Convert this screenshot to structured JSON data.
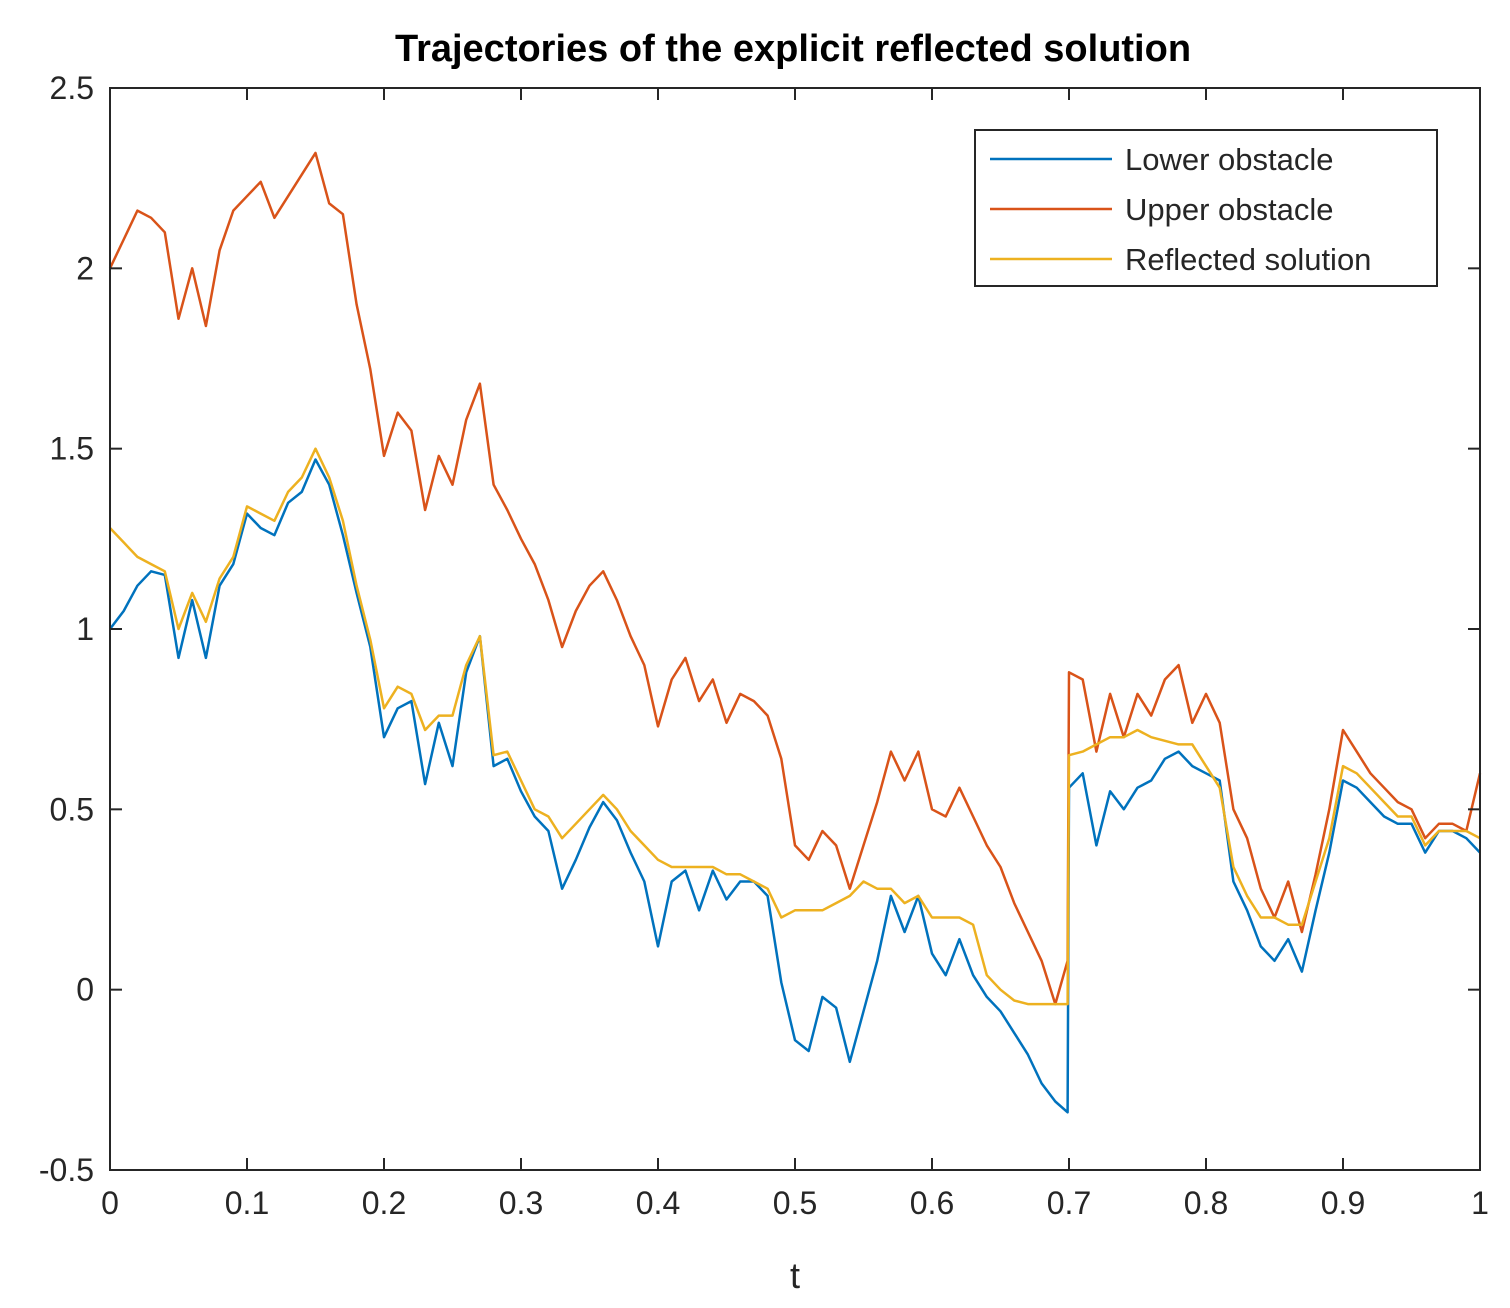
{
  "chart_data": {
    "type": "line",
    "title": "Trajectories of the explicit reflected solution",
    "xlabel": "t",
    "ylabel": "",
    "xlim": [
      0,
      1
    ],
    "ylim": [
      -0.5,
      2.5
    ],
    "xticks": [
      0,
      0.1,
      0.2,
      0.3,
      0.4,
      0.5,
      0.6,
      0.7,
      0.8,
      0.9,
      1
    ],
    "xtick_labels": [
      "0",
      "0.1",
      "0.2",
      "0.3",
      "0.4",
      "0.5",
      "0.6",
      "0.7",
      "0.8",
      "0.9",
      "1"
    ],
    "yticks": [
      -0.5,
      0,
      0.5,
      1,
      1.5,
      2,
      2.5
    ],
    "ytick_labels": [
      "-0.5",
      "0",
      "0.5",
      "1",
      "1.5",
      "2",
      "2.5"
    ],
    "grid": false,
    "legend_position": "top-right",
    "series": [
      {
        "name": "Lower obstacle",
        "color": "#0072BD",
        "x": [
          0,
          0.01,
          0.02,
          0.03,
          0.04,
          0.05,
          0.06,
          0.07,
          0.08,
          0.09,
          0.1,
          0.11,
          0.12,
          0.13,
          0.14,
          0.15,
          0.16,
          0.17,
          0.18,
          0.19,
          0.2,
          0.21,
          0.22,
          0.23,
          0.24,
          0.25,
          0.26,
          0.27,
          0.28,
          0.29,
          0.3,
          0.31,
          0.32,
          0.33,
          0.34,
          0.35,
          0.36,
          0.37,
          0.38,
          0.39,
          0.4,
          0.41,
          0.42,
          0.43,
          0.44,
          0.45,
          0.46,
          0.47,
          0.48,
          0.49,
          0.5,
          0.51,
          0.52,
          0.53,
          0.54,
          0.55,
          0.56,
          0.57,
          0.58,
          0.59,
          0.6,
          0.61,
          0.62,
          0.63,
          0.64,
          0.65,
          0.66,
          0.67,
          0.68,
          0.69,
          0.699,
          0.7,
          0.71,
          0.72,
          0.73,
          0.74,
          0.75,
          0.76,
          0.77,
          0.78,
          0.79,
          0.8,
          0.81,
          0.82,
          0.83,
          0.84,
          0.85,
          0.86,
          0.87,
          0.88,
          0.89,
          0.9,
          0.91,
          0.92,
          0.93,
          0.94,
          0.95,
          0.96,
          0.97,
          0.98,
          0.99,
          1.0
        ],
        "values": [
          1.0,
          1.05,
          1.12,
          1.16,
          1.15,
          0.92,
          1.08,
          0.92,
          1.12,
          1.18,
          1.32,
          1.28,
          1.26,
          1.35,
          1.38,
          1.47,
          1.4,
          1.26,
          1.1,
          0.95,
          0.7,
          0.78,
          0.8,
          0.57,
          0.74,
          0.62,
          0.88,
          0.98,
          0.62,
          0.64,
          0.55,
          0.48,
          0.44,
          0.28,
          0.36,
          0.45,
          0.52,
          0.47,
          0.38,
          0.3,
          0.12,
          0.3,
          0.33,
          0.22,
          0.33,
          0.25,
          0.3,
          0.3,
          0.26,
          0.02,
          -0.14,
          -0.17,
          -0.02,
          -0.05,
          -0.2,
          -0.06,
          0.08,
          0.26,
          0.16,
          0.26,
          0.1,
          0.04,
          0.14,
          0.04,
          -0.02,
          -0.06,
          -0.12,
          -0.18,
          -0.26,
          -0.31,
          -0.34,
          0.56,
          0.6,
          0.4,
          0.55,
          0.5,
          0.56,
          0.58,
          0.64,
          0.66,
          0.62,
          0.6,
          0.58,
          0.3,
          0.22,
          0.12,
          0.08,
          0.14,
          0.05,
          0.22,
          0.38,
          0.58,
          0.56,
          0.52,
          0.48,
          0.46,
          0.46,
          0.38,
          0.44,
          0.44,
          0.42,
          0.38
        ]
      },
      {
        "name": "Upper obstacle",
        "color": "#D95319",
        "x": [
          0,
          0.01,
          0.02,
          0.03,
          0.04,
          0.05,
          0.06,
          0.07,
          0.08,
          0.09,
          0.1,
          0.11,
          0.12,
          0.13,
          0.14,
          0.15,
          0.16,
          0.17,
          0.18,
          0.19,
          0.2,
          0.21,
          0.22,
          0.23,
          0.24,
          0.25,
          0.26,
          0.27,
          0.28,
          0.29,
          0.3,
          0.31,
          0.32,
          0.33,
          0.34,
          0.35,
          0.36,
          0.37,
          0.38,
          0.39,
          0.4,
          0.41,
          0.42,
          0.43,
          0.44,
          0.45,
          0.46,
          0.47,
          0.48,
          0.49,
          0.5,
          0.51,
          0.52,
          0.53,
          0.54,
          0.55,
          0.56,
          0.57,
          0.58,
          0.59,
          0.6,
          0.61,
          0.62,
          0.63,
          0.64,
          0.65,
          0.66,
          0.67,
          0.68,
          0.69,
          0.699,
          0.7,
          0.71,
          0.72,
          0.73,
          0.74,
          0.75,
          0.76,
          0.77,
          0.78,
          0.79,
          0.8,
          0.81,
          0.82,
          0.83,
          0.84,
          0.85,
          0.86,
          0.87,
          0.88,
          0.89,
          0.9,
          0.91,
          0.92,
          0.93,
          0.94,
          0.95,
          0.96,
          0.97,
          0.98,
          0.99,
          1.0
        ],
        "values": [
          2.0,
          2.08,
          2.16,
          2.14,
          2.1,
          1.86,
          2.0,
          1.84,
          2.05,
          2.16,
          2.2,
          2.24,
          2.14,
          2.2,
          2.26,
          2.32,
          2.18,
          2.15,
          1.9,
          1.72,
          1.48,
          1.6,
          1.55,
          1.33,
          1.48,
          1.4,
          1.58,
          1.68,
          1.4,
          1.33,
          1.25,
          1.18,
          1.08,
          0.95,
          1.05,
          1.12,
          1.16,
          1.08,
          0.98,
          0.9,
          0.73,
          0.86,
          0.92,
          0.8,
          0.86,
          0.74,
          0.82,
          0.8,
          0.76,
          0.64,
          0.4,
          0.36,
          0.44,
          0.4,
          0.28,
          0.4,
          0.52,
          0.66,
          0.58,
          0.66,
          0.5,
          0.48,
          0.56,
          0.48,
          0.4,
          0.34,
          0.24,
          0.16,
          0.08,
          -0.04,
          0.08,
          0.88,
          0.86,
          0.66,
          0.82,
          0.7,
          0.82,
          0.76,
          0.86,
          0.9,
          0.74,
          0.82,
          0.74,
          0.5,
          0.42,
          0.28,
          0.2,
          0.3,
          0.16,
          0.32,
          0.5,
          0.72,
          0.66,
          0.6,
          0.56,
          0.52,
          0.5,
          0.42,
          0.46,
          0.46,
          0.44,
          0.6
        ]
      },
      {
        "name": "Reflected solution",
        "color": "#EDB120",
        "x": [
          0,
          0.01,
          0.02,
          0.03,
          0.04,
          0.05,
          0.06,
          0.07,
          0.08,
          0.09,
          0.1,
          0.11,
          0.12,
          0.13,
          0.14,
          0.15,
          0.16,
          0.17,
          0.18,
          0.19,
          0.2,
          0.21,
          0.22,
          0.23,
          0.24,
          0.25,
          0.26,
          0.27,
          0.28,
          0.29,
          0.3,
          0.31,
          0.32,
          0.33,
          0.34,
          0.35,
          0.36,
          0.37,
          0.38,
          0.39,
          0.4,
          0.41,
          0.42,
          0.43,
          0.44,
          0.45,
          0.46,
          0.47,
          0.48,
          0.49,
          0.5,
          0.51,
          0.52,
          0.53,
          0.54,
          0.55,
          0.56,
          0.57,
          0.58,
          0.59,
          0.6,
          0.61,
          0.62,
          0.63,
          0.64,
          0.65,
          0.66,
          0.67,
          0.68,
          0.69,
          0.699,
          0.7,
          0.71,
          0.72,
          0.73,
          0.74,
          0.75,
          0.76,
          0.77,
          0.78,
          0.79,
          0.8,
          0.81,
          0.82,
          0.83,
          0.84,
          0.85,
          0.86,
          0.87,
          0.88,
          0.89,
          0.9,
          0.91,
          0.92,
          0.93,
          0.94,
          0.95,
          0.96,
          0.97,
          0.98,
          0.99,
          1.0
        ],
        "values": [
          1.28,
          1.24,
          1.2,
          1.18,
          1.16,
          1.0,
          1.1,
          1.02,
          1.14,
          1.2,
          1.34,
          1.32,
          1.3,
          1.38,
          1.42,
          1.5,
          1.42,
          1.3,
          1.12,
          0.97,
          0.78,
          0.84,
          0.82,
          0.72,
          0.76,
          0.76,
          0.9,
          0.98,
          0.65,
          0.66,
          0.58,
          0.5,
          0.48,
          0.42,
          0.46,
          0.5,
          0.54,
          0.5,
          0.44,
          0.4,
          0.36,
          0.34,
          0.34,
          0.34,
          0.34,
          0.32,
          0.32,
          0.3,
          0.28,
          0.2,
          0.22,
          0.22,
          0.22,
          0.24,
          0.26,
          0.3,
          0.28,
          0.28,
          0.24,
          0.26,
          0.2,
          0.2,
          0.2,
          0.18,
          0.04,
          0.0,
          -0.03,
          -0.04,
          -0.04,
          -0.04,
          -0.04,
          0.65,
          0.66,
          0.68,
          0.7,
          0.7,
          0.72,
          0.7,
          0.69,
          0.68,
          0.68,
          0.62,
          0.56,
          0.34,
          0.26,
          0.2,
          0.2,
          0.18,
          0.18,
          0.3,
          0.42,
          0.62,
          0.6,
          0.56,
          0.52,
          0.48,
          0.48,
          0.4,
          0.44,
          0.44,
          0.44,
          0.42
        ]
      }
    ]
  }
}
